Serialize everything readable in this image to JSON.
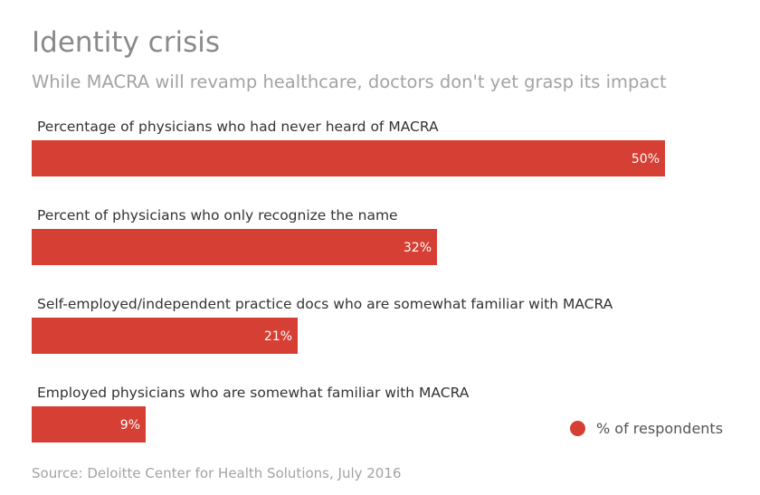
{
  "title": "Identity crisis",
  "subtitle": "While MACRA will revamp healthcare, doctors don't yet grasp its impact",
  "source": "Source: Deloitte Center for Health Solutions, July 2016",
  "chart_data": {
    "type": "bar",
    "orientation": "horizontal",
    "categories": [
      "Percentage of physicians who had never heard of MACRA",
      "Percent of physicians who only recognize the name",
      "Self-employed/independent practice docs who are somewhat familiar with MACRA",
      "Employed physicians who are somewhat familiar with MACRA"
    ],
    "series": [
      {
        "name": "% of respondents",
        "values": [
          50,
          32,
          21,
          9
        ],
        "labels": [
          "50%",
          "32%",
          "21%",
          "9%"
        ],
        "color": "#d63f33"
      }
    ],
    "xlim": [
      0,
      50
    ],
    "grid": false,
    "legend": "bottom-right"
  }
}
